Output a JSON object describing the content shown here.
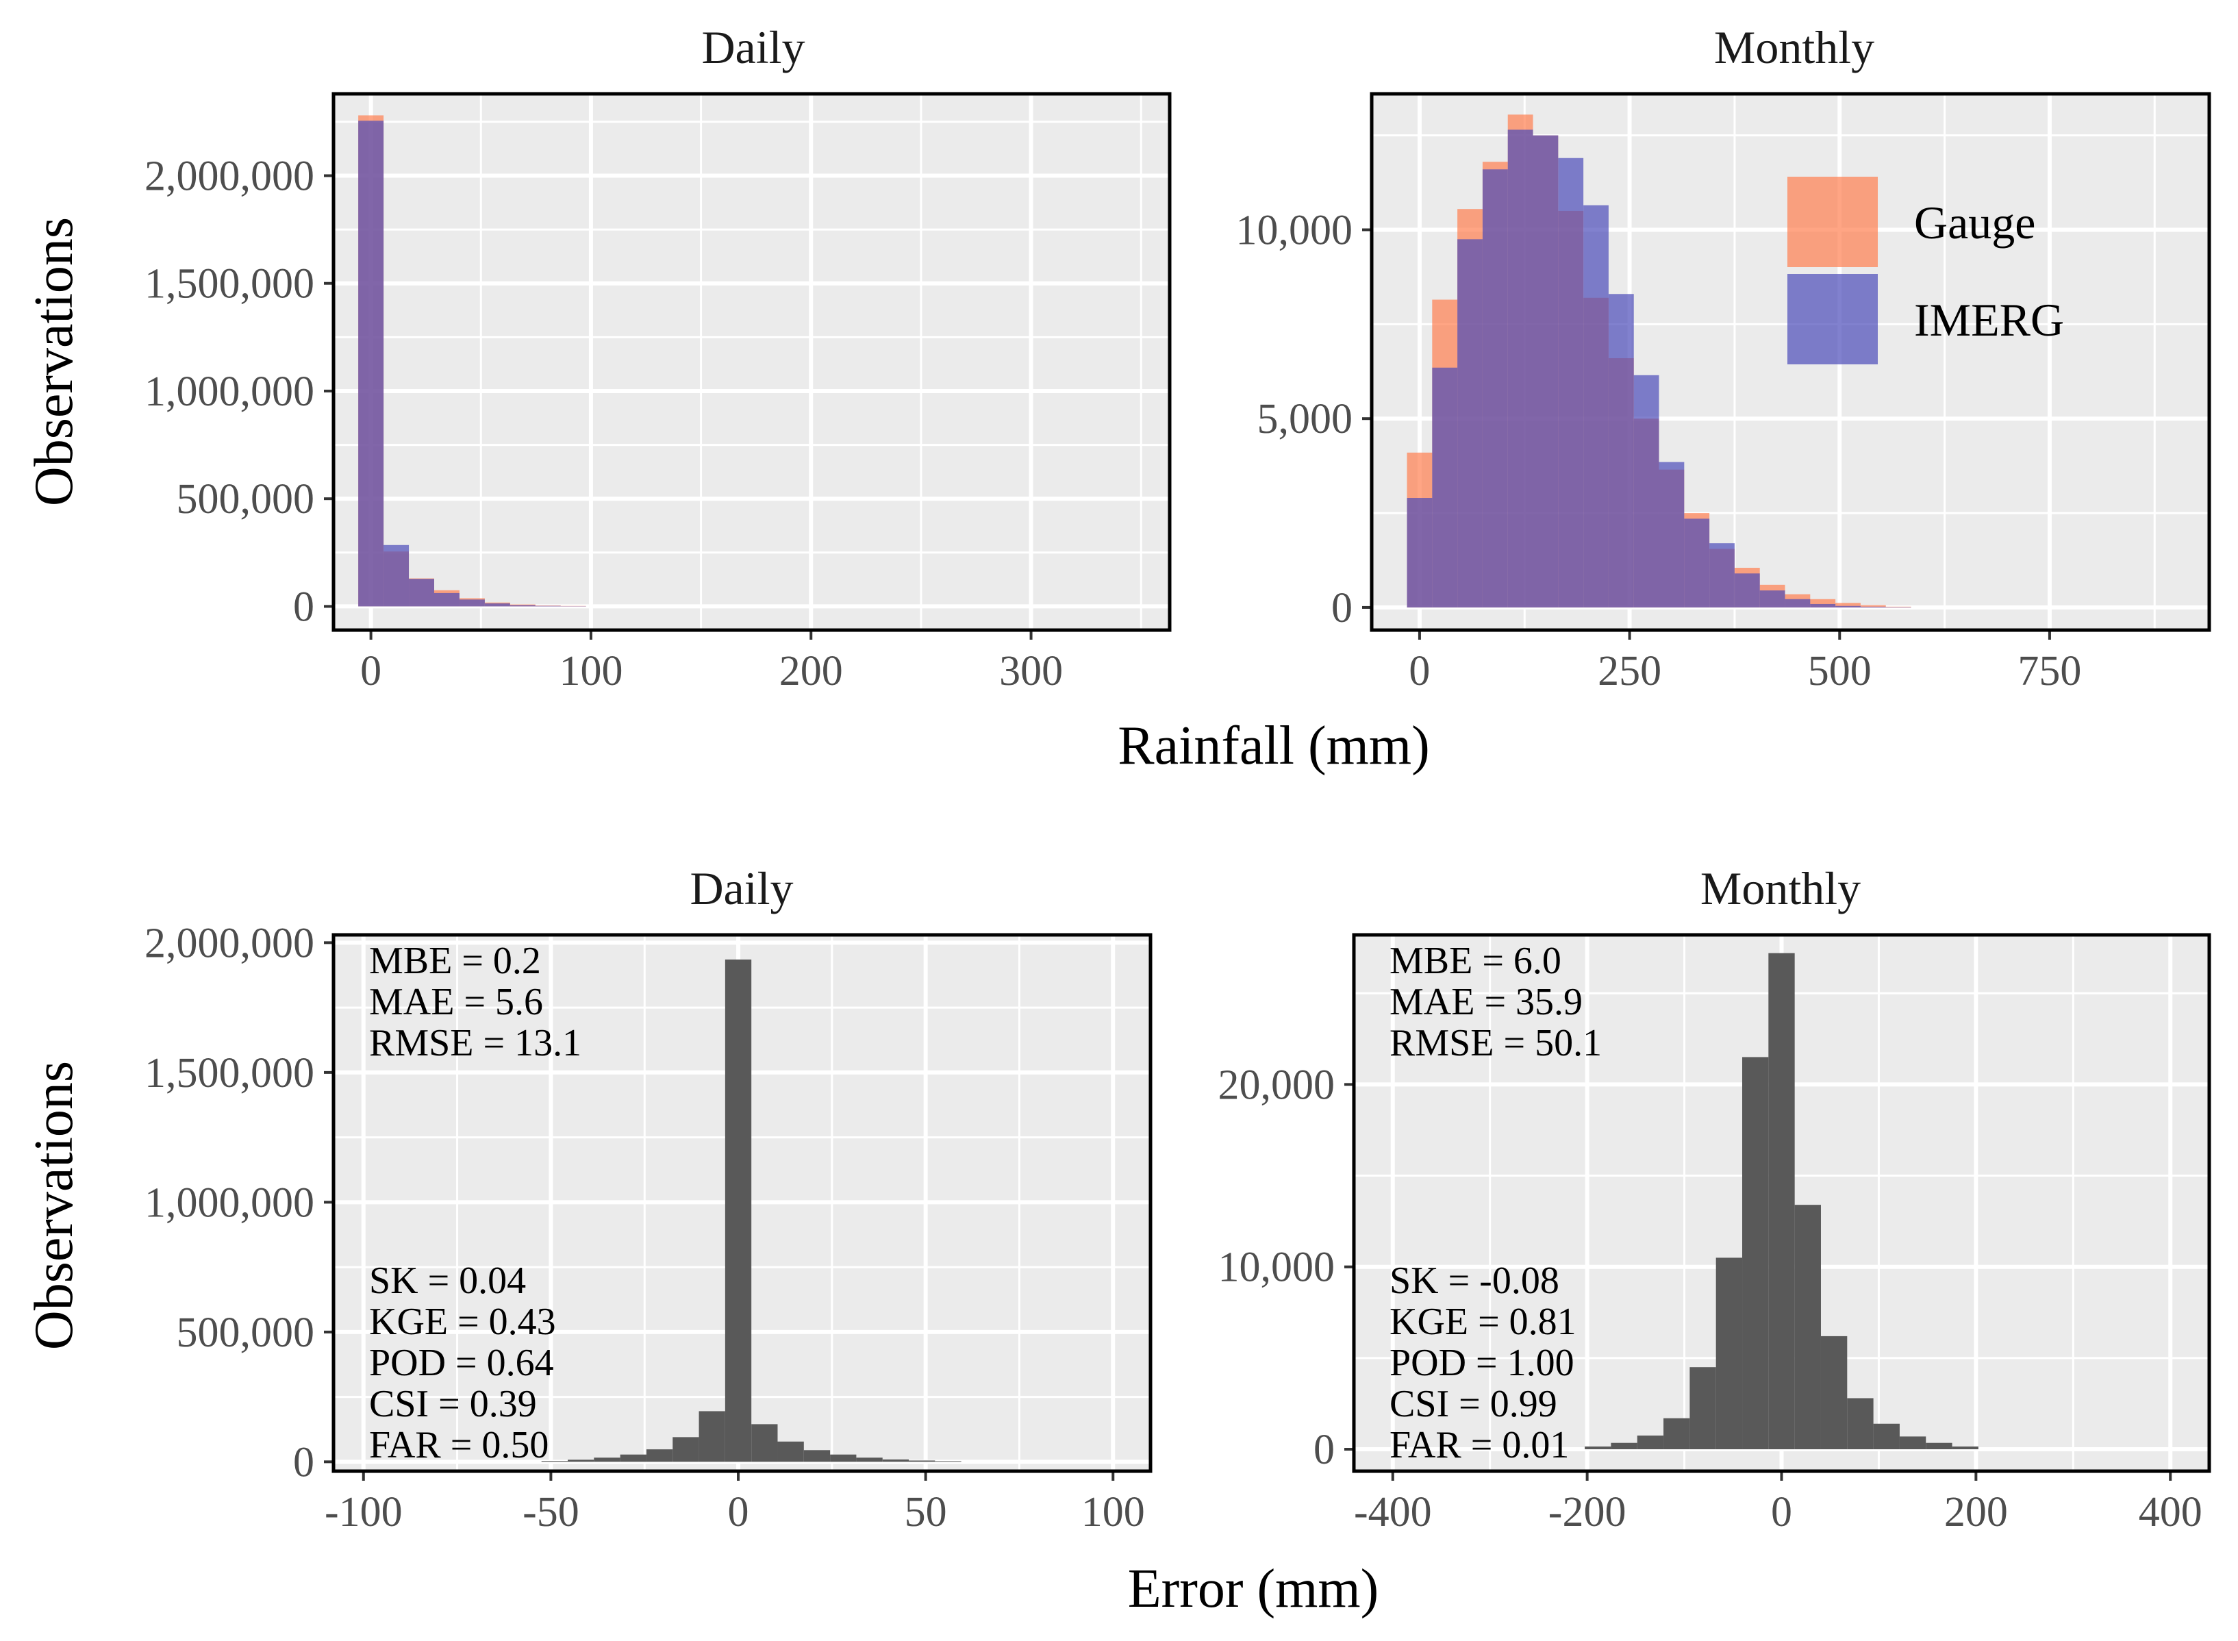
{
  "colors": {
    "panel_bg": "#EBEBEB",
    "grid": "#FFFFFF",
    "gauge": "#FF7F50",
    "imerg": "#4B4BB9",
    "error": "#595959",
    "frame": "#000000"
  },
  "labels": {
    "top_xlabel": "Rainfall (mm)",
    "top_ylabel": "Observations",
    "bottom_xlabel": "Error (mm)",
    "bottom_ylabel": "Observations"
  },
  "legend": {
    "gauge": "Gauge",
    "imerg": "IMERG"
  },
  "chart_data": [
    {
      "id": "rain_daily",
      "type": "bar",
      "title": "Daily",
      "xlabel": "Rainfall (mm)",
      "ylabel": "Observations",
      "xlim": [
        -17,
        363
      ],
      "ylim": [
        -110000,
        2380000
      ],
      "xticks": [
        0,
        100,
        200,
        300
      ],
      "xtick_labels": [
        "0",
        "100",
        "200",
        "300"
      ],
      "yticks": [
        0,
        500000,
        1000000,
        1500000,
        2000000
      ],
      "ytick_labels": [
        "0",
        "500,000",
        "1,000,000",
        "1,500,000",
        "2,000,000"
      ],
      "bin_width": 11.5,
      "bin_start": -5.75,
      "series": [
        {
          "name": "Gauge",
          "values": [
            2280000,
            255000,
            130000,
            75000,
            38000,
            18000,
            9000,
            4000,
            2000
          ]
        },
        {
          "name": "IMERG",
          "values": [
            2255000,
            285000,
            128000,
            62000,
            32000,
            14000,
            6000,
            2500,
            1000
          ]
        }
      ]
    },
    {
      "id": "rain_monthly",
      "type": "bar",
      "title": "Monthly",
      "xlabel": "Rainfall (mm)",
      "ylabel": "Observations",
      "xlim": [
        -57,
        940
      ],
      "ylim": [
        -600,
        13600
      ],
      "xticks": [
        0,
        250,
        500,
        750
      ],
      "xtick_labels": [
        "0",
        "250",
        "500",
        "750"
      ],
      "yticks": [
        0,
        5000,
        10000
      ],
      "ytick_labels": [
        "0",
        "5,000",
        "10,000"
      ],
      "bin_width": 30,
      "bin_start": -15,
      "series": [
        {
          "name": "Gauge",
          "values": [
            4100,
            8150,
            10550,
            11800,
            13050,
            12500,
            10500,
            8200,
            6600,
            5000,
            3650,
            2500,
            1550,
            1050,
            600,
            350,
            220,
            120,
            60,
            20
          ]
        },
        {
          "name": "IMERG",
          "values": [
            2900,
            6350,
            9750,
            11600,
            12650,
            12500,
            11900,
            10650,
            8300,
            6150,
            3850,
            2350,
            1700,
            900,
            450,
            220,
            90,
            40,
            20,
            10
          ]
        }
      ]
    },
    {
      "id": "err_daily",
      "type": "bar",
      "title": "Daily",
      "xlabel": "Error (mm)",
      "ylabel": "Observations",
      "xlim": [
        -108,
        110
      ],
      "ylim": [
        -36000,
        2030000
      ],
      "xticks": [
        -100,
        -50,
        0,
        50,
        100
      ],
      "xtick_labels": [
        "-100",
        "-50",
        "0",
        "50",
        "100"
      ],
      "yticks": [
        0,
        500000,
        1000000,
        1500000,
        2000000
      ],
      "ytick_labels": [
        "0",
        "500,000",
        "1,000,000",
        "1,500,000",
        "2,000,000"
      ],
      "bin_width": 7,
      "bin_start": -52.5,
      "values": [
        3000,
        8000,
        16000,
        28000,
        48000,
        95000,
        195000,
        1935000,
        145000,
        78000,
        45000,
        28000,
        16000,
        9000,
        5000,
        2500
      ],
      "stats_top": [
        "MBE = 0.2",
        "MAE = 5.6",
        "RMSE = 13.1"
      ],
      "stats_bottom": [
        "SK = 0.04",
        "KGE = 0.43",
        "POD = 0.64",
        "CSI = 0.39",
        "FAR = 0.50"
      ]
    },
    {
      "id": "err_monthly",
      "type": "bar",
      "title": "Monthly",
      "xlabel": "Error (mm)",
      "ylabel": "Observations",
      "xlim": [
        -440,
        440
      ],
      "ylim": [
        -1200,
        28200
      ],
      "xticks": [
        -400,
        -200,
        0,
        200,
        400
      ],
      "xtick_labels": [
        "-400",
        "-200",
        "0",
        "200",
        "400"
      ],
      "yticks": [
        0,
        10000,
        20000
      ],
      "ytick_labels": [
        "0",
        "10,000",
        "20,000"
      ],
      "bin_width": 27,
      "bin_start": -202.5,
      "values": [
        150,
        350,
        750,
        1700,
        4500,
        10500,
        21500,
        27200,
        13400,
        6200,
        2800,
        1400,
        700,
        350,
        150
      ],
      "stats_top": [
        "MBE = 6.0",
        "MAE = 35.9",
        "RMSE = 50.1"
      ],
      "stats_bottom": [
        "SK = -0.08",
        "KGE = 0.81",
        "POD = 1.00",
        "CSI = 0.99",
        "FAR = 0.01"
      ]
    }
  ]
}
